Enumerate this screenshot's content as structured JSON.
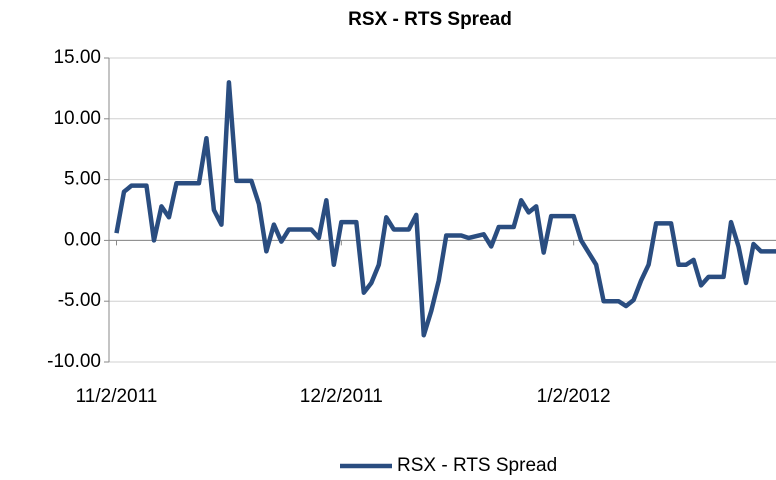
{
  "chart_data": {
    "type": "line",
    "title": "RSX - RTS Spread",
    "x": [
      "11/2/2011",
      "11/3/2011",
      "11/4/2011",
      "11/6/2011",
      "11/7/2011",
      "11/8/2011",
      "11/9/2011",
      "11/10/2011",
      "11/13/2011",
      "11/14/2011",
      "11/15/2011",
      "11/16/2011",
      "11/17/2011",
      "11/18/2011",
      "11/20/2011",
      "11/21/2011",
      "11/22/2011",
      "11/23/2011",
      "11/24/2011",
      "11/25/2011",
      "11/28/2011",
      "11/29/2011",
      "11/30/2011",
      "12/1/2011",
      "12/2/2011",
      "12/4/2011",
      "12/5/2011",
      "12/6/2011",
      "12/7/2011",
      "12/8/2011",
      "12/9/2011",
      "12/11/2011",
      "12/12/2011",
      "12/13/2011",
      "12/14/2011",
      "12/15/2011",
      "12/16/2011",
      "12/18/2011",
      "12/19/2011",
      "12/21/2011",
      "12/22/2011",
      "12/23/2011",
      "12/25/2011",
      "12/26/2011",
      "12/27/2011",
      "12/28/2011",
      "12/29/2011",
      "12/30/2011",
      "1/2/2012",
      "1/3/2012",
      "1/5/2012",
      "1/6/2012",
      "1/8/2012",
      "1/9/2012",
      "1/10/2012",
      "1/11/2012",
      "1/12/2012",
      "1/13/2012",
      "1/15/2012",
      "1/16/2012",
      "1/17/2012",
      "1/18/2012",
      "1/19/2012",
      "1/20/2012",
      "1/22/2012",
      "1/23/2012",
      "1/24/2012",
      "1/25/2012",
      "1/26/2012",
      "1/27/2012",
      "1/29/2012"
    ],
    "series": [
      {
        "name": "RSX - RTS Spread",
        "color": "#2a4d80",
        "values": [
          0.6,
          4.0,
          4.5,
          4.5,
          0.0,
          2.8,
          1.9,
          4.7,
          4.7,
          8.4,
          2.5,
          1.3,
          13.0,
          4.9,
          4.9,
          3.0,
          -0.9,
          1.3,
          -0.1,
          0.9,
          0.9,
          0.2,
          3.3,
          -2.0,
          1.5,
          1.5,
          -4.3,
          -3.5,
          -2.0,
          1.9,
          0.9,
          0.9,
          2.1,
          -7.8,
          -5.8,
          -3.3,
          0.4,
          0.4,
          0.2,
          0.5,
          -0.5,
          1.1,
          1.1,
          3.3,
          2.3,
          2.8,
          -1.0,
          2.0,
          2.0,
          0.0,
          -2.0,
          -5.0,
          -5.0,
          -5.4,
          -4.9,
          -3.3,
          -2.0,
          1.4,
          1.4,
          -2.0,
          -2.0,
          -1.6,
          -3.7,
          -3.0,
          -3.0,
          1.5,
          -0.5,
          -3.5,
          -0.3,
          -0.9,
          -0.9
        ]
      }
    ],
    "xlim": [
      "11/1/2011",
      "1/29/2012"
    ],
    "xticks": [
      "11/2/2011",
      "12/2/2011",
      "1/2/2012"
    ],
    "ylim": [
      -10,
      15
    ],
    "yticks": [
      {
        "value": -10,
        "label": "-10.00"
      },
      {
        "value": -5,
        "label": "-5.00"
      },
      {
        "value": 0,
        "label": "0.00"
      },
      {
        "value": 5,
        "label": "5.00"
      },
      {
        "value": 10,
        "label": "10.00"
      },
      {
        "value": 15,
        "label": "15.00"
      }
    ],
    "grid": true,
    "legend": "bottom"
  }
}
